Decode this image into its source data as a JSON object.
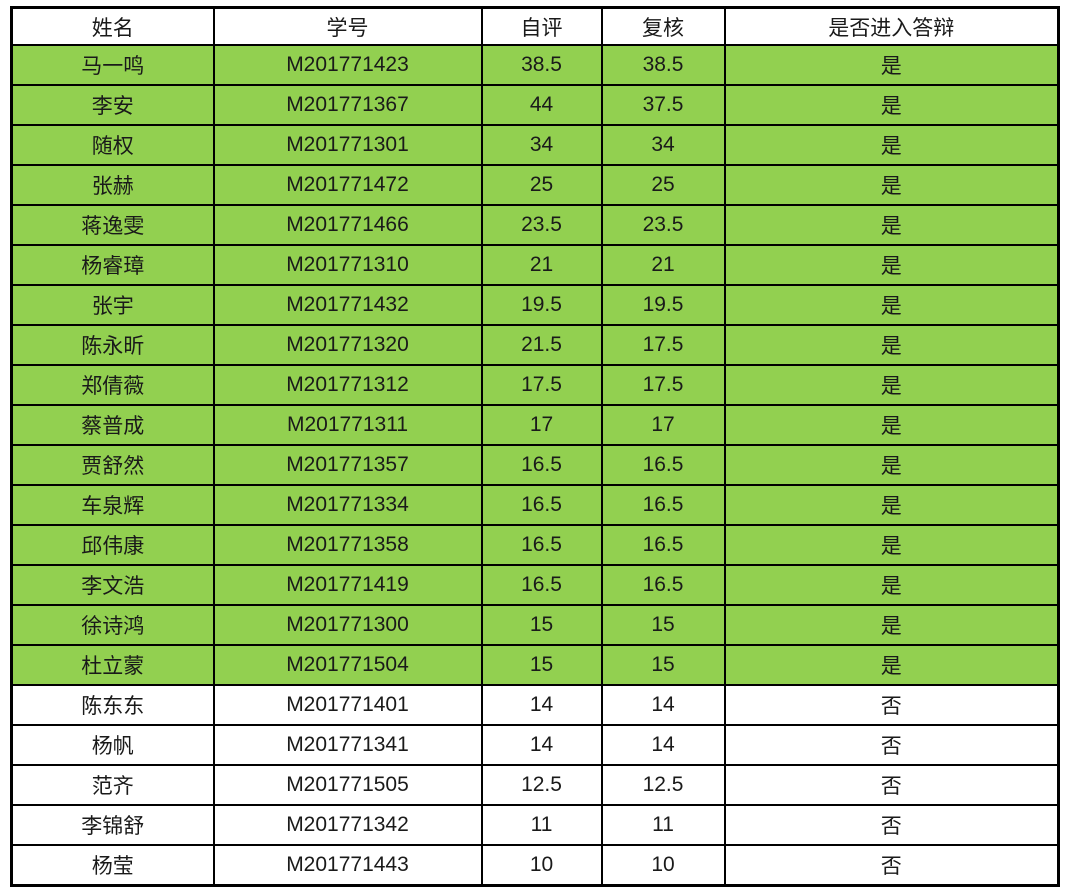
{
  "colors": {
    "highlight_green": "#92d050",
    "border": "#000000",
    "text": "#1a1a1a",
    "background": "#ffffff"
  },
  "table": {
    "columns": [
      {
        "key": "name",
        "label": "姓名"
      },
      {
        "key": "student_id",
        "label": "学号"
      },
      {
        "key": "self_score",
        "label": "自评"
      },
      {
        "key": "review_score",
        "label": "复核"
      },
      {
        "key": "defense",
        "label": "是否进入答辩"
      }
    ],
    "rows": [
      {
        "name": "马一鸣",
        "student_id": "M201771423",
        "self_score": "38.5",
        "review_score": "38.5",
        "defense": "是",
        "qualified": true
      },
      {
        "name": "李安",
        "student_id": "M201771367",
        "self_score": "44",
        "review_score": "37.5",
        "defense": "是",
        "qualified": true
      },
      {
        "name": "随权",
        "student_id": "M201771301",
        "self_score": "34",
        "review_score": "34",
        "defense": "是",
        "qualified": true
      },
      {
        "name": "张赫",
        "student_id": "M201771472",
        "self_score": "25",
        "review_score": "25",
        "defense": "是",
        "qualified": true
      },
      {
        "name": "蒋逸雯",
        "student_id": "M201771466",
        "self_score": "23.5",
        "review_score": "23.5",
        "defense": "是",
        "qualified": true
      },
      {
        "name": "杨睿璋",
        "student_id": "M201771310",
        "self_score": "21",
        "review_score": "21",
        "defense": "是",
        "qualified": true
      },
      {
        "name": "张宇",
        "student_id": "M201771432",
        "self_score": "19.5",
        "review_score": "19.5",
        "defense": "是",
        "qualified": true
      },
      {
        "name": "陈永昕",
        "student_id": "M201771320",
        "self_score": "21.5",
        "review_score": "17.5",
        "defense": "是",
        "qualified": true
      },
      {
        "name": "郑倩薇",
        "student_id": "M201771312",
        "self_score": "17.5",
        "review_score": "17.5",
        "defense": "是",
        "qualified": true
      },
      {
        "name": "蔡普成",
        "student_id": "M201771311",
        "self_score": "17",
        "review_score": "17",
        "defense": "是",
        "qualified": true
      },
      {
        "name": "贾舒然",
        "student_id": "M201771357",
        "self_score": "16.5",
        "review_score": "16.5",
        "defense": "是",
        "qualified": true
      },
      {
        "name": "车泉辉",
        "student_id": "M201771334",
        "self_score": "16.5",
        "review_score": "16.5",
        "defense": "是",
        "qualified": true
      },
      {
        "name": "邱伟康",
        "student_id": "M201771358",
        "self_score": "16.5",
        "review_score": "16.5",
        "defense": "是",
        "qualified": true
      },
      {
        "name": "李文浩",
        "student_id": "M201771419",
        "self_score": "16.5",
        "review_score": "16.5",
        "defense": "是",
        "qualified": true
      },
      {
        "name": "徐诗鸿",
        "student_id": "M201771300",
        "self_score": "15",
        "review_score": "15",
        "defense": "是",
        "qualified": true
      },
      {
        "name": "杜立蒙",
        "student_id": "M201771504",
        "self_score": "15",
        "review_score": "15",
        "defense": "是",
        "qualified": true
      },
      {
        "name": "陈东东",
        "student_id": "M201771401",
        "self_score": "14",
        "review_score": "14",
        "defense": "否",
        "qualified": false
      },
      {
        "name": "杨帆",
        "student_id": "M201771341",
        "self_score": "14",
        "review_score": "14",
        "defense": "否",
        "qualified": false
      },
      {
        "name": "范齐",
        "student_id": "M201771505",
        "self_score": "12.5",
        "review_score": "12.5",
        "defense": "否",
        "qualified": false
      },
      {
        "name": "李锦舒",
        "student_id": "M201771342",
        "self_score": "11",
        "review_score": "11",
        "defense": "否",
        "qualified": false
      },
      {
        "name": "杨莹",
        "student_id": "M201771443",
        "self_score": "10",
        "review_score": "10",
        "defense": "否",
        "qualified": false
      }
    ]
  }
}
